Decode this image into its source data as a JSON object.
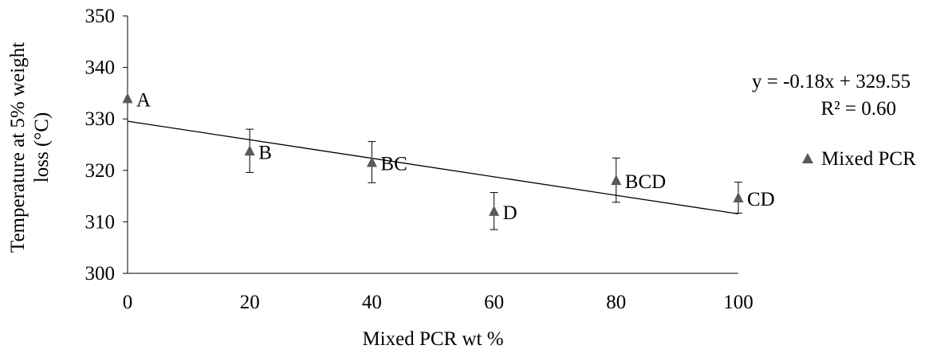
{
  "chart_data": {
    "type": "scatter",
    "title": "",
    "xlabel": "Mixed PCR wt %",
    "ylabel_lines": [
      "Temperature at 5%  weight",
      "loss (°C)"
    ],
    "xlim": [
      0,
      100
    ],
    "ylim": [
      300,
      350
    ],
    "x_ticks": [
      0,
      20,
      40,
      60,
      80,
      100
    ],
    "y_ticks": [
      300,
      310,
      320,
      330,
      340,
      350
    ],
    "x_tick_labels": [
      "0",
      "20",
      "40",
      "60",
      "80",
      "100"
    ],
    "y_tick_labels": [
      "300",
      "310",
      "320",
      "330",
      "340",
      "350"
    ],
    "grid": false,
    "series": [
      {
        "name": "Mixed PCR",
        "marker": "triangle",
        "color": "#595959",
        "points": [
          {
            "x": 0,
            "y": 334,
            "error": 0,
            "label": "A"
          },
          {
            "x": 20,
            "y": 323.8,
            "error": 4.2,
            "label": "B"
          },
          {
            "x": 40,
            "y": 321.6,
            "error": 4.0,
            "label": "BC"
          },
          {
            "x": 60,
            "y": 312.1,
            "error": 3.6,
            "label": "D"
          },
          {
            "x": 80,
            "y": 318.1,
            "error": 4.3,
            "label": "BCD"
          },
          {
            "x": 100,
            "y": 314.7,
            "error": 3.0,
            "label": "CD"
          }
        ]
      }
    ],
    "trendline": {
      "slope": -0.18,
      "intercept": 329.55,
      "equation": "y = -0.18x + 329.55",
      "r2": "R² = 0.60",
      "color": "#000000"
    },
    "legend": {
      "position": "right",
      "label": "Mixed PCR"
    }
  }
}
